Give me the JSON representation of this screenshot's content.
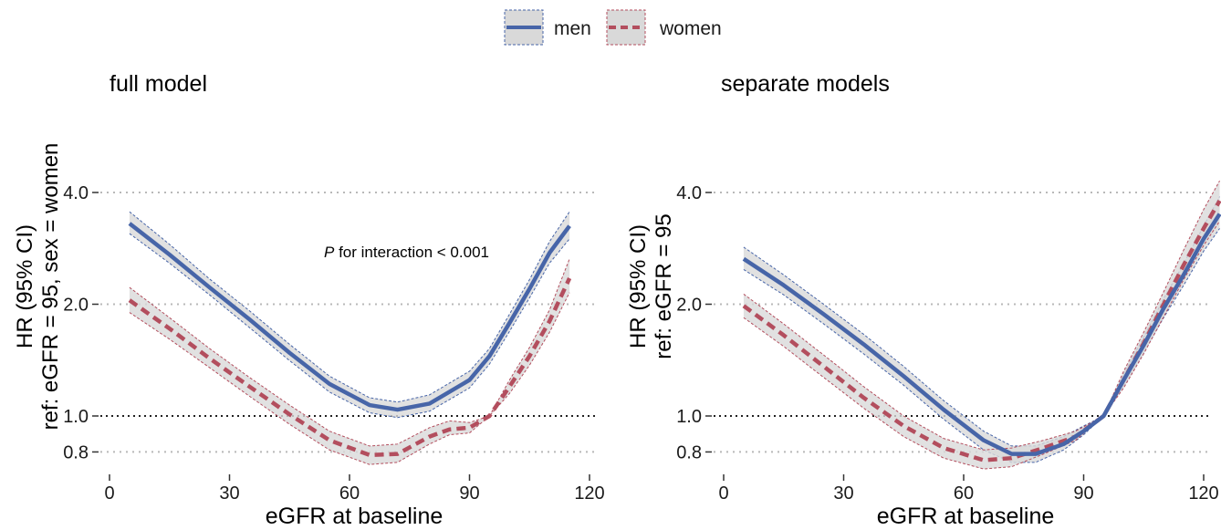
{
  "legend": {
    "position": "top",
    "entries": [
      {
        "name": "men",
        "color": "#4765a8",
        "linestyle": "solid"
      },
      {
        "name": "women",
        "color": "#b34e5e",
        "linestyle": "dashed"
      }
    ]
  },
  "colors": {
    "ribbon": "#d9d9d9",
    "men": "#4765a8",
    "women": "#b34e5e",
    "grid": "#b8b8b8",
    "reference": "#222222"
  },
  "chart_data": [
    {
      "type": "line",
      "title": "full model",
      "xlabel": "eGFR at baseline",
      "ylabel_lines": [
        "HR (95% CI)",
        "ref: eGFR = 95, sex = women"
      ],
      "annotation": {
        "italic": "P",
        "text": " for interaction < 0.001"
      },
      "xlim": [
        0,
        120
      ],
      "ylim": [
        0.75,
        4.5
      ],
      "y_scale": "log",
      "reference_line": 1.0,
      "xticks": [
        0,
        30,
        60,
        90,
        120
      ],
      "yticks": [
        0.8,
        1.0,
        2.0,
        4.0
      ],
      "ytick_labels": [
        "0.8",
        "1.0",
        "2.0",
        "4.0"
      ],
      "grid": "horizontal dotted at y ticks",
      "series": [
        {
          "name": "men",
          "x": [
            5,
            15,
            25,
            35,
            45,
            55,
            65,
            72,
            80,
            90,
            95,
            100,
            105,
            110,
            115
          ],
          "y": [
            3.3,
            2.72,
            2.22,
            1.82,
            1.48,
            1.22,
            1.07,
            1.04,
            1.08,
            1.25,
            1.45,
            1.78,
            2.2,
            2.75,
            3.25
          ],
          "lower": [
            3.1,
            2.58,
            2.12,
            1.73,
            1.41,
            1.16,
            1.02,
            0.99,
            1.03,
            1.19,
            1.38,
            1.69,
            2.08,
            2.58,
            3.0
          ],
          "upper": [
            3.55,
            2.9,
            2.34,
            1.92,
            1.56,
            1.28,
            1.12,
            1.09,
            1.14,
            1.32,
            1.52,
            1.88,
            2.33,
            2.95,
            3.55
          ]
        },
        {
          "name": "women",
          "x": [
            5,
            15,
            25,
            35,
            45,
            55,
            65,
            72,
            80,
            85,
            90,
            95,
            100,
            105,
            110,
            115
          ],
          "y": [
            2.05,
            1.72,
            1.43,
            1.2,
            1.01,
            0.86,
            0.785,
            0.79,
            0.88,
            0.92,
            0.93,
            1.0,
            1.2,
            1.45,
            1.8,
            2.35
          ],
          "lower": [
            1.9,
            1.61,
            1.35,
            1.13,
            0.95,
            0.81,
            0.74,
            0.75,
            0.84,
            0.89,
            0.9,
            1.0,
            1.15,
            1.37,
            1.68,
            2.15
          ],
          "upper": [
            2.22,
            1.84,
            1.52,
            1.27,
            1.07,
            0.91,
            0.83,
            0.84,
            0.93,
            0.97,
            0.96,
            1.0,
            1.25,
            1.53,
            1.93,
            2.65
          ]
        }
      ]
    },
    {
      "type": "line",
      "title": "separate models",
      "xlabel": "eGFR at baseline",
      "ylabel_lines": [
        "HR (95% CI)",
        "ref: eGFR = 95"
      ],
      "xlim": [
        0,
        120
      ],
      "ylim": [
        0.75,
        4.5
      ],
      "y_scale": "log",
      "reference_line": 1.0,
      "xticks": [
        0,
        30,
        60,
        90,
        120
      ],
      "yticks": [
        0.8,
        1.0,
        2.0,
        4.0
      ],
      "ytick_labels": [
        "0.8",
        "1.0",
        "2.0",
        "4.0"
      ],
      "grid": "horizontal dotted at y ticks",
      "series": [
        {
          "name": "men",
          "x": [
            5,
            15,
            25,
            35,
            45,
            55,
            65,
            72,
            78,
            85,
            90,
            95,
            100,
            105,
            110,
            115,
            120,
            124
          ],
          "y": [
            2.65,
            2.25,
            1.88,
            1.56,
            1.28,
            1.04,
            0.86,
            0.79,
            0.79,
            0.84,
            0.91,
            1.0,
            1.25,
            1.55,
            1.95,
            2.4,
            3.0,
            3.5
          ],
          "lower": [
            2.48,
            2.12,
            1.77,
            1.47,
            1.21,
            0.98,
            0.81,
            0.75,
            0.75,
            0.81,
            0.89,
            1.0,
            1.2,
            1.48,
            1.84,
            2.25,
            2.78,
            3.2
          ],
          "upper": [
            2.85,
            2.4,
            2.0,
            1.66,
            1.36,
            1.1,
            0.91,
            0.83,
            0.83,
            0.88,
            0.94,
            1.0,
            1.3,
            1.63,
            2.07,
            2.57,
            3.25,
            3.9
          ]
        },
        {
          "name": "women",
          "x": [
            5,
            15,
            25,
            35,
            45,
            55,
            65,
            72,
            80,
            88,
            95,
            100,
            105,
            110,
            115,
            120,
            124
          ],
          "y": [
            1.98,
            1.65,
            1.36,
            1.12,
            0.94,
            0.82,
            0.76,
            0.77,
            0.82,
            0.88,
            1.0,
            1.25,
            1.57,
            2.0,
            2.55,
            3.2,
            3.8
          ],
          "lower": [
            1.84,
            1.54,
            1.27,
            1.05,
            0.88,
            0.77,
            0.72,
            0.73,
            0.79,
            0.86,
            1.0,
            1.19,
            1.47,
            1.85,
            2.33,
            2.88,
            3.35
          ],
          "upper": [
            2.13,
            1.77,
            1.46,
            1.2,
            1.0,
            0.87,
            0.81,
            0.82,
            0.86,
            0.91,
            1.0,
            1.32,
            1.68,
            2.16,
            2.8,
            3.6,
            4.3
          ]
        }
      ]
    }
  ]
}
